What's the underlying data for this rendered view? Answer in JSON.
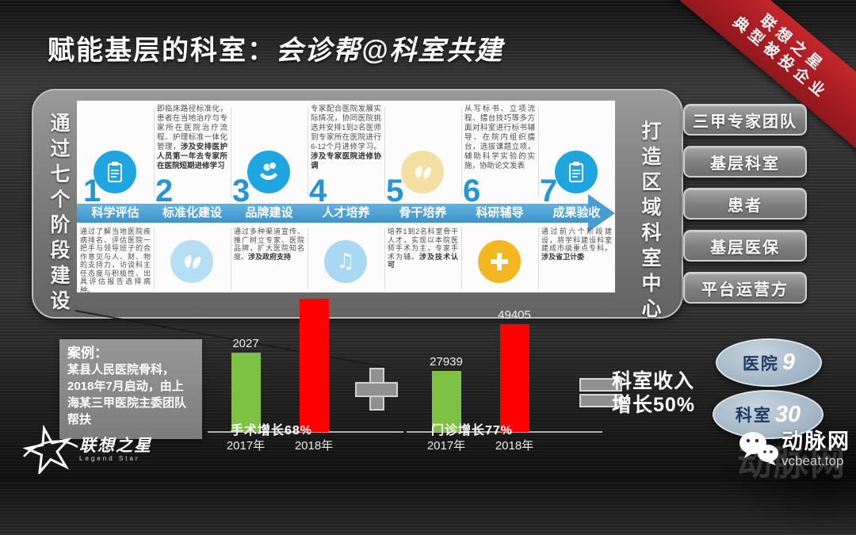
{
  "title": {
    "prefix": "赋能基层的科室：",
    "emphasis": "会诊帮@科室共建"
  },
  "ribbon": {
    "line1": "联想之星",
    "line2": "典型被投企业"
  },
  "left_banner": "通过七个阶段建设",
  "right_banner": "打造区域科室中心",
  "stages": [
    {
      "num": "1",
      "label": "科学评估",
      "icon": "clipboard-icon",
      "icon_color": "#1fa6e0",
      "desc_pos": "bottom",
      "desc_main": "通过了解当地医院疾病排名、评估医院一把手与领导班子的合作意见与人、财、物的支持力，访谈科主任态度与积极性、出具评估报告选择病种。",
      "desc_bold": ""
    },
    {
      "num": "2",
      "label": "标准化建设",
      "icon": "leaf-icon",
      "icon_color": "#b5e0f4",
      "desc_pos": "top",
      "desc_main": "即临床路径标准化，患者在当地治疗与专家所在医院治疗流程、护理标准一体化管理，",
      "desc_bold": "涉及安排医护人员第一年去专家所在医院短期进修学习"
    },
    {
      "num": "3",
      "label": "品牌建设",
      "icon": "coins-hand-icon",
      "icon_color": "#1fa6e0",
      "desc_pos": "bottom",
      "desc_main": "通过多种渠道宣传、推广树立专家、医院品牌，扩大医院知名度。",
      "desc_bold": "涉及政府支持"
    },
    {
      "num": "4",
      "label": "人才培养",
      "icon": "music-note-icon",
      "icon_color": "#a9d9f2",
      "desc_pos": "top",
      "desc_main": "专家配合医院发展实际情况，协同医院挑选并安排1到2名医师到专家所在医院进行6-12个月进修学习。",
      "desc_bold": "涉及专家医院进修协调"
    },
    {
      "num": "5",
      "label": "骨干培养",
      "icon": "leaves-icon",
      "icon_color": "#f4dfa3",
      "desc_pos": "bottom",
      "desc_main": "培养1到2名科室骨干人才，实现以本院医师手术为主，专家手术为辅。",
      "desc_bold": "涉及技术认可"
    },
    {
      "num": "6",
      "label": "科研辅导",
      "icon": "plus-icon",
      "icon_color": "#f3b71f",
      "desc_pos": "top",
      "desc_main": "从写标书、立项流程、擂台技巧等多方面对科室进行标书辅导、在院内组织擂台，选拔课题立项，辅助科学实验的实施，协助论文发表",
      "desc_bold": ""
    },
    {
      "num": "7",
      "label": "成果验收",
      "icon": "clipboard-icon",
      "icon_color": "#1fa6e0",
      "desc_pos": "bottom",
      "desc_main": "通过前六个阶段建设，将学科建设科室建成市级重点专科。",
      "desc_bold": "涉及省卫计委"
    }
  ],
  "side_buttons": [
    "三甲专家团队",
    "基层科室",
    "患者",
    "基层医保",
    "平台运营方"
  ],
  "case_box": {
    "title": "案例：",
    "body": "某县人民医院骨科，2018年7月启动，由上海某三甲医院主委团队帮扶"
  },
  "chart_data": [
    {
      "type": "bar",
      "title": "手术增长68%",
      "categories": [
        "2017年",
        "2018年"
      ],
      "values": [
        2027,
        3405
      ],
      "value_labels": [
        "2027",
        ""
      ],
      "bar_colors": [
        "#7dc242",
        "#fe0000"
      ],
      "ylim": [
        0,
        3500
      ],
      "note": "2018 bar unlabeled in image; height implies ~68% growth over 2027"
    },
    {
      "type": "bar",
      "title": "门诊增长77%",
      "categories": [
        "2017年",
        "2018年"
      ],
      "values": [
        27939,
        49405
      ],
      "value_labels": [
        "27939",
        "49405"
      ],
      "bar_colors": [
        "#7dc242",
        "#fe0000"
      ],
      "ylim": [
        0,
        50000
      ]
    }
  ],
  "result_text": {
    "line1": "科室收入",
    "line2": "增长50%"
  },
  "ovals": [
    {
      "label": "医院",
      "value": "9"
    },
    {
      "label": "科室",
      "value": "30"
    }
  ],
  "footer": {
    "logo_cn": "联想之星",
    "logo_en": "Legend Star",
    "watermark_name": "动脉网",
    "watermark_url": "vcbeat.top"
  },
  "colors": {
    "accent_blue": "#1fa6e0",
    "banner_blue": "#4a9dd3",
    "light_blue": "#a9d9f2",
    "cream": "#f4dfa3",
    "amber": "#f3b71f",
    "green": "#7dc242",
    "red": "#fe0000",
    "ribbon_red": "#a81d22",
    "panel_white": "#fcfcfc"
  }
}
